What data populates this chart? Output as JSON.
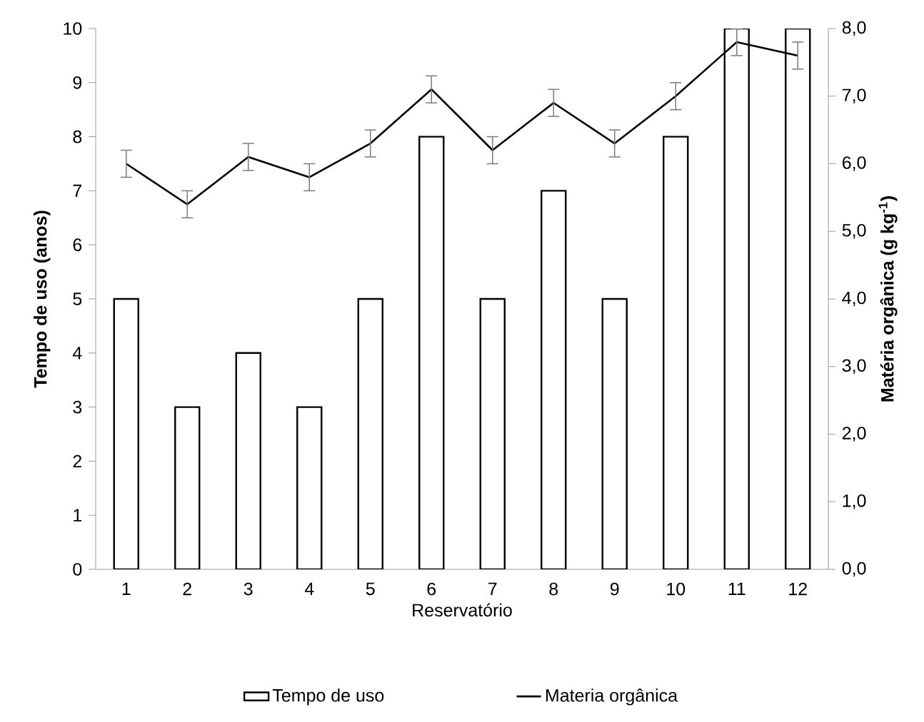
{
  "chart_data": {
    "type": "bar",
    "xlabel": "Reservatório",
    "ylabel": "Tempo de uso (anos)",
    "y2label": "Matéria orgânica (g kg$^{-1}$)",
    "categories": [
      "1",
      "2",
      "3",
      "4",
      "5",
      "6",
      "7",
      "8",
      "9",
      "10",
      "11",
      "12"
    ],
    "series": [
      {
        "name": "Tempo de uso",
        "color": "#000000",
        "values": [
          5,
          3,
          4,
          3,
          5,
          8,
          5,
          7,
          5,
          8,
          10,
          10
        ]
      },
      {
        "name": "Materia orgânica",
        "type": "line",
        "axis": "y2",
        "color": "#000000",
        "values": [
          6.0,
          5.4,
          6.1,
          5.8,
          6.3,
          7.1,
          6.2,
          6.9,
          6.3,
          7.0,
          7.8,
          7.6
        ],
        "errors": [
          0.2,
          0.2,
          0.2,
          0.2,
          0.2,
          0.2,
          0.2,
          0.2,
          0.2,
          0.2,
          0.2,
          0.2
        ]
      }
    ],
    "ylim": [
      0,
      10
    ],
    "yticks": [
      0,
      1,
      2,
      3,
      4,
      5,
      6,
      7,
      8,
      9,
      10
    ],
    "y2lim": [
      0,
      8
    ],
    "y2ticks": [
      {
        "value": 0,
        "label": "0,0"
      },
      {
        "value": 1,
        "label": "1,0"
      },
      {
        "value": 2,
        "label": "2,0"
      },
      {
        "value": 3,
        "label": "3,0"
      },
      {
        "value": 4,
        "label": "4,0"
      },
      {
        "value": 5,
        "label": "5,0"
      },
      {
        "value": 6,
        "label": "6,0"
      },
      {
        "value": 7,
        "label": "7,0"
      },
      {
        "value": 8,
        "label": "8,0"
      }
    ],
    "grid": false,
    "legend": "bottom",
    "marker": "none",
    "line_style": "solid"
  }
}
